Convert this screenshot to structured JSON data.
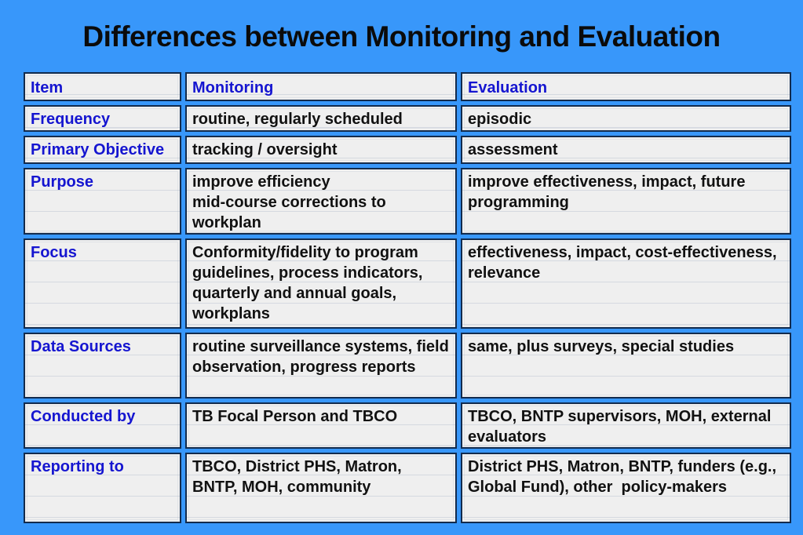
{
  "slide": {
    "title": "Differences between Monitoring and Evaluation"
  },
  "colors": {
    "slide_background": "#3897fa",
    "cell_background": "#efefef",
    "table_border": "#122b4d",
    "label_text": "#1515d0",
    "body_text": "#111111",
    "title_text": "#0b0b0b"
  },
  "table": {
    "headers": [
      "Item",
      "Monitoring",
      "Evaluation"
    ],
    "rows": [
      {
        "item": "Frequency",
        "monitoring": "routine, regularly scheduled",
        "evaluation": "episodic"
      },
      {
        "item": "Primary Objective",
        "monitoring": "tracking / oversight",
        "evaluation": "assessment"
      },
      {
        "item": "Purpose",
        "monitoring": "improve efficiency\nmid-course corrections to workplan",
        "evaluation": "improve effectiveness, impact, future programming"
      },
      {
        "item": "Focus",
        "monitoring": "Conformity/fidelity to program guidelines, process indicators, quarterly and annual goals, workplans",
        "evaluation": "effectiveness, impact, cost-effectiveness, relevance"
      },
      {
        "item": "Data Sources",
        "monitoring": "routine surveillance systems, field observation, progress reports",
        "evaluation": "same, plus surveys, special studies"
      },
      {
        "item": "Conducted by",
        "monitoring": "TB Focal Person and TBCO",
        "evaluation": "TBCO, BNTP supervisors, MOH, external evaluators"
      },
      {
        "item": "Reporting to",
        "monitoring": "TBCO, District PHS, Matron, BNTP, MOH, community",
        "evaluation": "District PHS, Matron, BNTP, funders (e.g., Global Fund), other  policy-makers"
      }
    ]
  }
}
